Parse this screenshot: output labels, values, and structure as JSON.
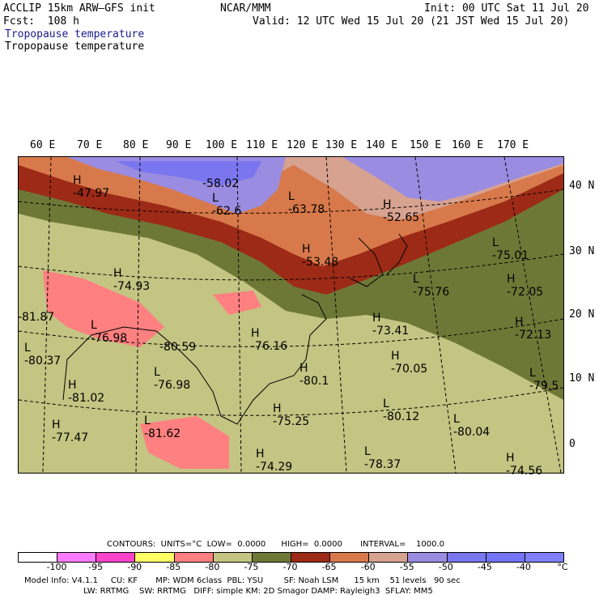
{
  "header": {
    "model": "ACCLIP 15km ARW–GFS init",
    "center": "NCAR/MMM",
    "init": "Init: 00 UTC Sat 11 Jul 20",
    "fcst": "Fcst:  108 h",
    "valid": "Valid: 12 UTC Wed 15 Jul 20 (21 JST Wed 15 Jul 20)",
    "field1": "Tropopause temperature",
    "field2": "Tropopause temperature"
  },
  "axes": {
    "lon_labels": [
      "60 E",
      "70 E",
      "80 E",
      "90 E",
      "100 E",
      "110 E",
      "120 E",
      "130 E",
      "140 E",
      "150 E",
      "160 E",
      "170 E"
    ],
    "lat_labels": [
      "40 N",
      "30 N",
      "20 N",
      "10 N",
      "0"
    ]
  },
  "map_labels": [
    {
      "hl": "H",
      "val": "-47.97"
    },
    {
      "hl": "",
      "val": "-58.02"
    },
    {
      "hl": "L",
      "val": "-62.6"
    },
    {
      "hl": "L",
      "val": "-63.78"
    },
    {
      "hl": "H",
      "val": "-52.65"
    },
    {
      "hl": "H",
      "val": "-53.48"
    },
    {
      "hl": "H",
      "val": "-74.93"
    },
    {
      "hl": "",
      "val": "-81.87"
    },
    {
      "hl": "L",
      "val": "-76.98"
    },
    {
      "hl": "L",
      "val": "-80.37"
    },
    {
      "hl": "",
      "val": "-80.59"
    },
    {
      "hl": "H",
      "val": "-76.16"
    },
    {
      "hl": "L",
      "val": "-76.98"
    },
    {
      "hl": "H",
      "val": "-80.1"
    },
    {
      "hl": "H",
      "val": "-81.02"
    },
    {
      "hl": "H",
      "val": "-77.47"
    },
    {
      "hl": "L",
      "val": "-81.62"
    },
    {
      "hl": "H",
      "val": "-75.25"
    },
    {
      "hl": "L",
      "val": "-80.12"
    },
    {
      "hl": "H",
      "val": "-74.29"
    },
    {
      "hl": "L",
      "val": "-78.37"
    },
    {
      "hl": "L",
      "val": "-80.04"
    },
    {
      "hl": "L",
      "val": "-75.01"
    },
    {
      "hl": "H",
      "val": "-72.05"
    },
    {
      "hl": "L",
      "val": "-75.76"
    },
    {
      "hl": "H",
      "val": "-73.41"
    },
    {
      "hl": "H",
      "val": "-72.13"
    },
    {
      "hl": "H",
      "val": "-70.05"
    },
    {
      "hl": "L",
      "val": "-79.5"
    },
    {
      "hl": "H",
      "val": "-74.56"
    }
  ],
  "contours": {
    "line": "CONTOURS:  UNITS=°C  LOW=  0.0000      HIGH=  0.0000       INTERVAL=    1000.0"
  },
  "legend": {
    "colors": [
      "#ffffff",
      "#ff7bff",
      "#ff44cc",
      "#ffff66",
      "#ff8080",
      "#c4c483",
      "#6e7836",
      "#9c2a16",
      "#d7794a",
      "#d7a290",
      "#9a8ce0",
      "#7a76f0",
      "#7474f4",
      "#8080ff"
    ],
    "ticks": [
      "-100",
      "-95",
      "-90",
      "-85",
      "-80",
      "-75",
      "-70",
      "-65",
      "-60",
      "-55",
      "-50",
      "-45",
      "-40",
      "°C"
    ]
  },
  "footer": {
    "line1": "Model Info: V4.1.1     CU: KF       MP: WDM 6class  PBL: YSU        SF: Noah LSM      15 km    51 levels   90 sec",
    "line2": "                       LW: RRTMG    SW: RRTMG   DIFF: simple KM: 2D Smagor DAMP: Rayleigh3  SFLAY: MM5"
  }
}
